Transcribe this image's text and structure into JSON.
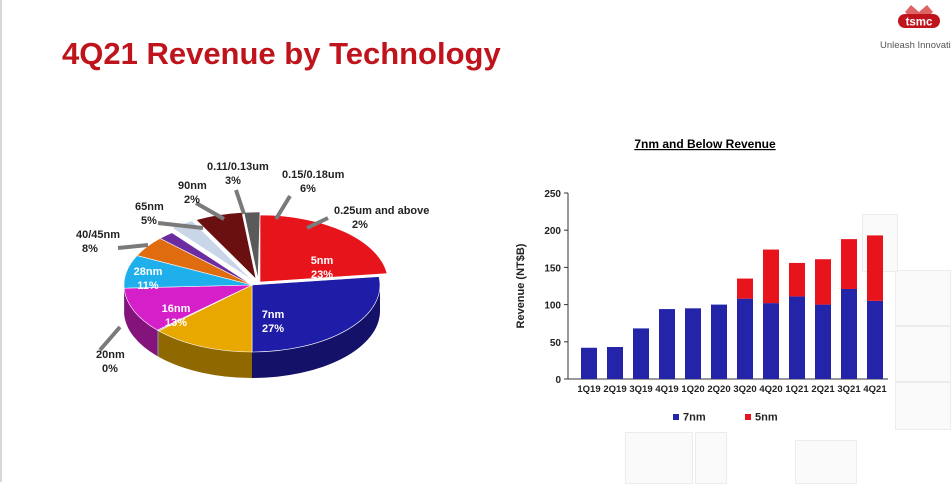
{
  "slide": {
    "title": "4Q21 Revenue by Technology",
    "brand": "tsmc",
    "tagline": "Unleash Innovatio",
    "accent_color": "#c0141c"
  },
  "chart_data": [
    {
      "type": "pie",
      "title": "",
      "labels": [
        "5nm",
        "7nm",
        "16nm",
        "20nm",
        "28nm",
        "40/45nm",
        "65nm",
        "90nm",
        "0.11/0.13um",
        "0.15/0.18um",
        "0.25um and above"
      ],
      "values": [
        23,
        27,
        13,
        0,
        11,
        8,
        5,
        2,
        3,
        6,
        2
      ],
      "value_labels": [
        "23%",
        "27%",
        "13%",
        "0%",
        "11%",
        "8%",
        "5%",
        "2%",
        "3%",
        "6%",
        "2%"
      ],
      "colors": [
        "#e8141c",
        "#1f1ca8",
        "#e8a800",
        "#b0b0b0",
        "#d51fc8",
        "#1fb0ec",
        "#e06c10",
        "#6a2ca0",
        "#c8d6e8",
        "#6a1010",
        "#5a5a5a"
      ],
      "style": "3d exploded-ring, labels inside for large slices, callouts for small"
    },
    {
      "type": "bar",
      "title": "7nm and Below Revenue",
      "xlabel": "",
      "ylabel": "Revenue (NT$B)",
      "ylim": [
        0,
        250
      ],
      "yticks": [
        "0",
        "50",
        "100",
        "150",
        "200",
        "250"
      ],
      "stacked": true,
      "categories": [
        "1Q19",
        "2Q19",
        "3Q19",
        "4Q19",
        "1Q20",
        "2Q20",
        "3Q20",
        "4Q20",
        "1Q21",
        "2Q21",
        "3Q21",
        "4Q21"
      ],
      "series": [
        {
          "name": "7nm",
          "color": "#2424a8",
          "values": [
            42,
            43,
            68,
            94,
            95,
            100,
            108,
            102,
            111,
            100,
            121,
            105
          ]
        },
        {
          "name": "5nm",
          "color": "#e8141c",
          "values": [
            0,
            0,
            0,
            0,
            0,
            0,
            27,
            72,
            45,
            61,
            67,
            88
          ]
        }
      ],
      "legend": "bottom",
      "grid": false
    }
  ]
}
